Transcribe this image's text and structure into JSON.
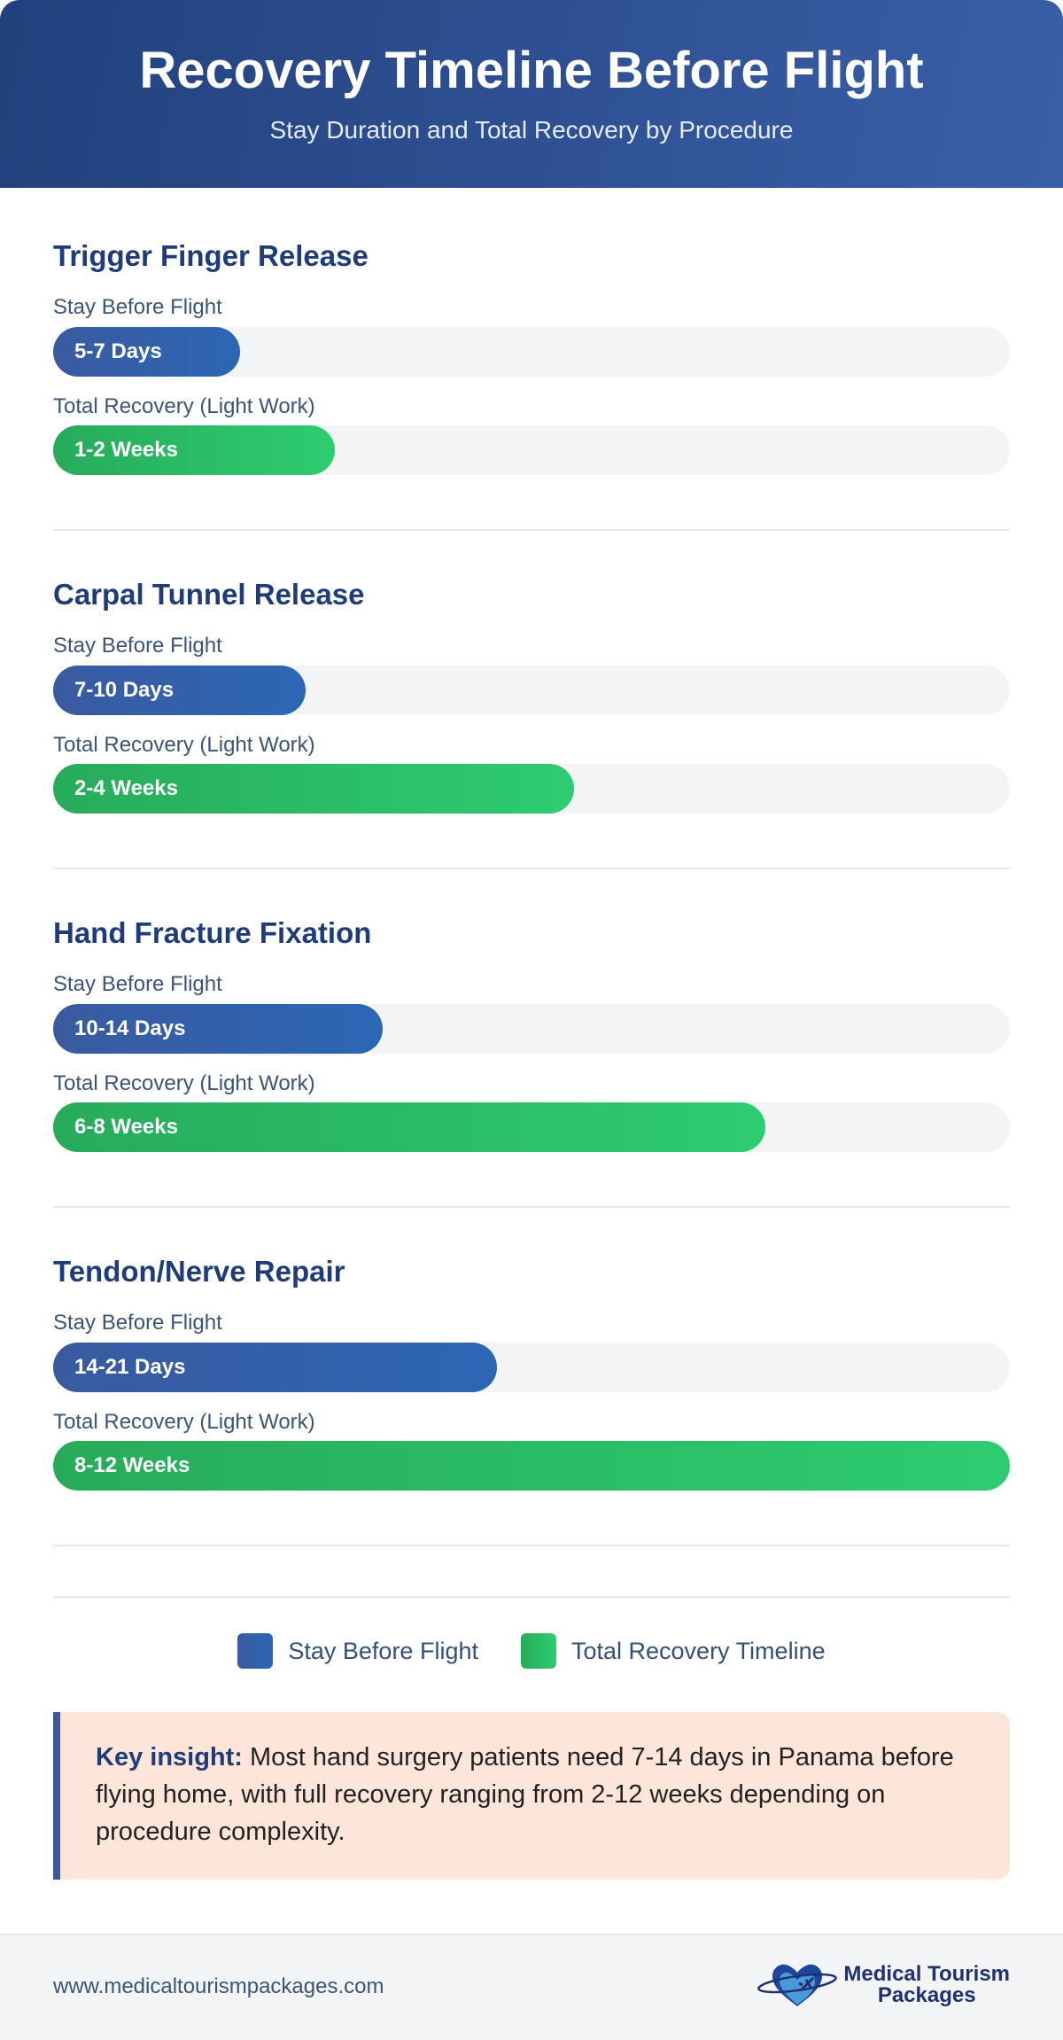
{
  "header": {
    "title": "Recovery Timeline Before Flight",
    "subtitle": "Stay Duration and Total Recovery by Procedure"
  },
  "colors": {
    "stay": "#2f62ae",
    "recovery": "#2ecc71",
    "header": "#2b4b8f",
    "insight_bg": "#fde5da"
  },
  "procedures": [
    {
      "name": "Trigger Finger Release",
      "stay_label": "Stay Before Flight",
      "stay_value": "5-7 Days",
      "stay_pct": 19.5,
      "recovery_label": "Total Recovery (Light Work)",
      "recovery_value": "1-2 Weeks",
      "recovery_pct": 29.4
    },
    {
      "name": "Carpal Tunnel Release",
      "stay_label": "Stay Before Flight",
      "stay_value": "7-10 Days",
      "stay_pct": 26.4,
      "recovery_label": "Total Recovery (Light Work)",
      "recovery_value": "2-4 Weeks",
      "recovery_pct": 54.4
    },
    {
      "name": "Hand Fracture Fixation",
      "stay_label": "Stay Before Flight",
      "stay_value": "10-14 Days",
      "stay_pct": 34.4,
      "recovery_label": "Total Recovery (Light Work)",
      "recovery_value": "6-8 Weeks",
      "recovery_pct": 74.4
    },
    {
      "name": "Tendon/Nerve Repair",
      "stay_label": "Stay Before Flight",
      "stay_value": "14-21 Days",
      "stay_pct": 46.4,
      "recovery_label": "Total Recovery (Light Work)",
      "recovery_value": "8-12 Weeks",
      "recovery_pct": 100
    }
  ],
  "legend": {
    "stay": "Stay Before Flight",
    "recovery": "Total Recovery Timeline"
  },
  "insight": {
    "label": "Key insight:",
    "text": " Most hand surgery patients need 7-14 days in Panama before flying home, with full recovery ranging from 2-12 weeks depending on procedure complexity."
  },
  "footer": {
    "url": "www.medicaltourismpackages.com",
    "logo_line1": "Medical Tourism",
    "logo_line2": "Packages"
  }
}
